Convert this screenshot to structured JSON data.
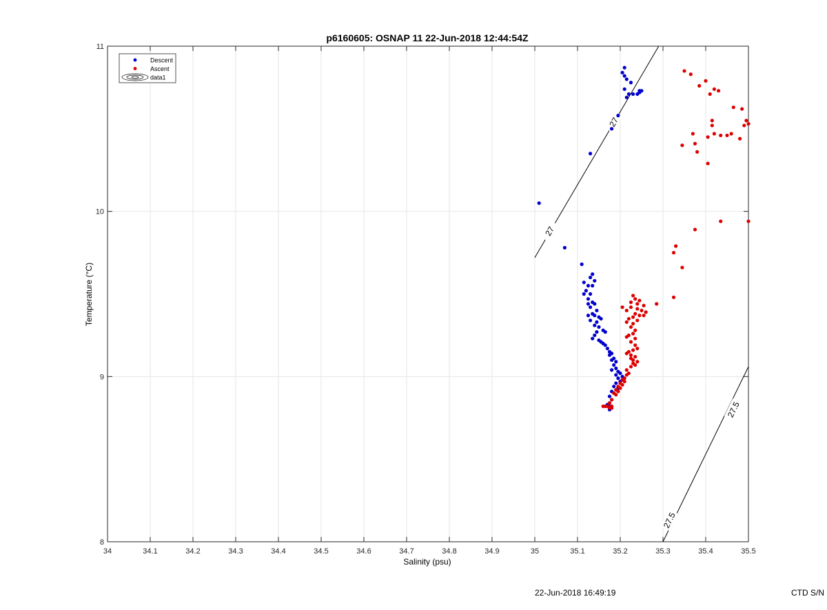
{
  "chart_data": {
    "type": "scatter",
    "title": "p6160605: OSNAP 11 22-Jun-2018 12:44:54Z",
    "xlabel": "Salinity (psu)",
    "ylabel": "Temperature (°C)",
    "xlim": [
      34,
      35.5
    ],
    "ylim": [
      8,
      11
    ],
    "xticks": [
      "34",
      "34.1",
      "34.2",
      "34.3",
      "34.4",
      "34.5",
      "34.6",
      "34.7",
      "34.8",
      "34.9",
      "35",
      "35.1",
      "35.2",
      "35.3",
      "35.4",
      "35.5"
    ],
    "yticks": [
      "8",
      "9",
      "10",
      "11"
    ],
    "grid": true,
    "legend": {
      "placement": "top-left",
      "entries": [
        "Descent",
        "Ascent",
        "data1"
      ]
    },
    "series": [
      {
        "name": "Descent",
        "color": "#0000cc",
        "points": [
          [
            35.21,
            10.87
          ],
          [
            35.205,
            10.84
          ],
          [
            35.21,
            10.82
          ],
          [
            35.215,
            10.8
          ],
          [
            35.225,
            10.78
          ],
          [
            35.21,
            10.74
          ],
          [
            35.22,
            10.71
          ],
          [
            35.215,
            10.69
          ],
          [
            35.23,
            10.71
          ],
          [
            35.24,
            10.71
          ],
          [
            35.245,
            10.72
          ],
          [
            35.25,
            10.73
          ],
          [
            35.245,
            10.73
          ],
          [
            35.195,
            10.58
          ],
          [
            35.18,
            10.5
          ],
          [
            35.13,
            10.35
          ],
          [
            35.01,
            10.05
          ],
          [
            35.07,
            9.78
          ],
          [
            35.11,
            9.68
          ],
          [
            35.135,
            9.62
          ],
          [
            35.13,
            9.6
          ],
          [
            35.14,
            9.58
          ],
          [
            35.115,
            9.57
          ],
          [
            35.125,
            9.55
          ],
          [
            35.135,
            9.55
          ],
          [
            35.12,
            9.52
          ],
          [
            35.13,
            9.5
          ],
          [
            35.115,
            9.5
          ],
          [
            35.125,
            9.47
          ],
          [
            35.135,
            9.45
          ],
          [
            35.125,
            9.44
          ],
          [
            35.14,
            9.44
          ],
          [
            35.13,
            9.42
          ],
          [
            35.145,
            9.4
          ],
          [
            35.135,
            9.38
          ],
          [
            35.125,
            9.37
          ],
          [
            35.14,
            9.37
          ],
          [
            35.15,
            9.36
          ],
          [
            35.155,
            9.35
          ],
          [
            35.13,
            9.34
          ],
          [
            35.145,
            9.33
          ],
          [
            35.14,
            9.31
          ],
          [
            35.15,
            9.3
          ],
          [
            35.16,
            9.28
          ],
          [
            35.145,
            9.27
          ],
          [
            35.165,
            9.27
          ],
          [
            35.14,
            9.25
          ],
          [
            35.135,
            9.23
          ],
          [
            35.15,
            9.22
          ],
          [
            35.155,
            9.21
          ],
          [
            35.16,
            9.2
          ],
          [
            35.165,
            9.19
          ],
          [
            35.17,
            9.17
          ],
          [
            35.175,
            9.15
          ],
          [
            35.18,
            9.14
          ],
          [
            35.175,
            9.13
          ],
          [
            35.185,
            9.11
          ],
          [
            35.18,
            9.1
          ],
          [
            35.19,
            9.09
          ],
          [
            35.185,
            9.07
          ],
          [
            35.19,
            9.05
          ],
          [
            35.18,
            9.04
          ],
          [
            35.195,
            9.03
          ],
          [
            35.2,
            9.02
          ],
          [
            35.19,
            9.01
          ],
          [
            35.205,
            9.0
          ],
          [
            35.195,
            8.99
          ],
          [
            35.2,
            8.97
          ],
          [
            35.19,
            8.96
          ],
          [
            35.185,
            8.94
          ],
          [
            35.195,
            8.93
          ],
          [
            35.18,
            8.91
          ],
          [
            35.185,
            8.9
          ],
          [
            35.175,
            8.88
          ],
          [
            35.18,
            8.86
          ],
          [
            35.175,
            8.84
          ],
          [
            35.17,
            8.83
          ],
          [
            35.175,
            8.82
          ],
          [
            35.18,
            8.81
          ],
          [
            35.175,
            8.8
          ]
        ]
      },
      {
        "name": "Ascent",
        "color": "#dd0000",
        "points": [
          [
            35.35,
            10.85
          ],
          [
            35.365,
            10.83
          ],
          [
            35.385,
            10.76
          ],
          [
            35.4,
            10.79
          ],
          [
            35.41,
            10.71
          ],
          [
            35.42,
            10.74
          ],
          [
            35.43,
            10.73
          ],
          [
            35.465,
            10.63
          ],
          [
            35.485,
            10.62
          ],
          [
            35.495,
            10.55
          ],
          [
            35.5,
            10.53
          ],
          [
            35.49,
            10.52
          ],
          [
            35.415,
            10.55
          ],
          [
            35.415,
            10.52
          ],
          [
            35.42,
            10.47
          ],
          [
            35.435,
            10.46
          ],
          [
            35.45,
            10.46
          ],
          [
            35.46,
            10.47
          ],
          [
            35.48,
            10.44
          ],
          [
            35.405,
            10.45
          ],
          [
            35.37,
            10.47
          ],
          [
            35.375,
            10.41
          ],
          [
            35.345,
            10.4
          ],
          [
            35.38,
            10.36
          ],
          [
            35.405,
            10.29
          ],
          [
            35.435,
            9.94
          ],
          [
            35.5,
            9.94
          ],
          [
            35.375,
            9.89
          ],
          [
            35.33,
            9.79
          ],
          [
            35.325,
            9.75
          ],
          [
            35.345,
            9.66
          ],
          [
            35.325,
            9.48
          ],
          [
            35.285,
            9.44
          ],
          [
            35.23,
            9.49
          ],
          [
            35.235,
            9.47
          ],
          [
            35.245,
            9.46
          ],
          [
            35.225,
            9.45
          ],
          [
            35.24,
            9.44
          ],
          [
            35.255,
            9.43
          ],
          [
            35.205,
            9.42
          ],
          [
            35.225,
            9.42
          ],
          [
            35.24,
            9.41
          ],
          [
            35.215,
            9.4
          ],
          [
            35.25,
            9.4
          ],
          [
            35.26,
            9.39
          ],
          [
            35.235,
            9.38
          ],
          [
            35.245,
            9.37
          ],
          [
            35.255,
            9.37
          ],
          [
            35.23,
            9.36
          ],
          [
            35.22,
            9.35
          ],
          [
            35.24,
            9.34
          ],
          [
            35.215,
            9.33
          ],
          [
            35.23,
            9.32
          ],
          [
            35.225,
            9.3
          ],
          [
            35.235,
            9.28
          ],
          [
            35.23,
            9.26
          ],
          [
            35.22,
            9.25
          ],
          [
            35.215,
            9.24
          ],
          [
            35.235,
            9.23
          ],
          [
            35.225,
            9.21
          ],
          [
            35.235,
            9.19
          ],
          [
            35.24,
            9.17
          ],
          [
            35.23,
            9.16
          ],
          [
            35.22,
            9.15
          ],
          [
            35.215,
            9.14
          ],
          [
            35.225,
            9.13
          ],
          [
            35.235,
            9.12
          ],
          [
            35.225,
            9.11
          ],
          [
            35.23,
            9.1
          ],
          [
            35.24,
            9.09
          ],
          [
            35.23,
            9.08
          ],
          [
            35.235,
            9.07
          ],
          [
            35.225,
            9.06
          ],
          [
            35.215,
            9.04
          ],
          [
            35.22,
            9.02
          ],
          [
            35.215,
            9.01
          ],
          [
            35.21,
            8.99
          ],
          [
            35.205,
            8.98
          ],
          [
            35.21,
            8.97
          ],
          [
            35.2,
            8.96
          ],
          [
            35.205,
            8.95
          ],
          [
            35.195,
            8.94
          ],
          [
            35.2,
            8.93
          ],
          [
            35.19,
            8.92
          ],
          [
            35.195,
            8.91
          ],
          [
            35.185,
            8.9
          ],
          [
            35.19,
            8.89
          ],
          [
            35.18,
            8.86
          ],
          [
            35.175,
            8.84
          ],
          [
            35.18,
            8.82
          ],
          [
            35.17,
            8.82
          ],
          [
            35.165,
            8.82
          ],
          [
            35.16,
            8.82
          ],
          [
            35.175,
            8.81
          ],
          [
            35.18,
            8.81
          ]
        ]
      }
    ],
    "contours": [
      {
        "level": "27",
        "color": "#000000",
        "path": [
          [
            35.0,
            9.72
          ],
          [
            35.29,
            11.0
          ]
        ],
        "labels": [
          {
            "text": "27",
            "at": [
              35.035,
              9.88
            ]
          },
          {
            "text": "27",
            "at": [
              35.185,
              10.54
            ]
          }
        ]
      },
      {
        "level": "27.5",
        "color": "#000000",
        "path": [
          [
            35.3,
            8.0
          ],
          [
            35.5,
            9.06
          ]
        ],
        "labels": [
          {
            "text": "27.5",
            "at": [
              35.315,
              8.13
            ]
          },
          {
            "text": "27.5",
            "at": [
              35.465,
              8.8
            ]
          }
        ]
      }
    ]
  },
  "footer": {
    "timestamp": "22-Jun-2018 16:49:19",
    "serial_label": "CTD S/N"
  }
}
